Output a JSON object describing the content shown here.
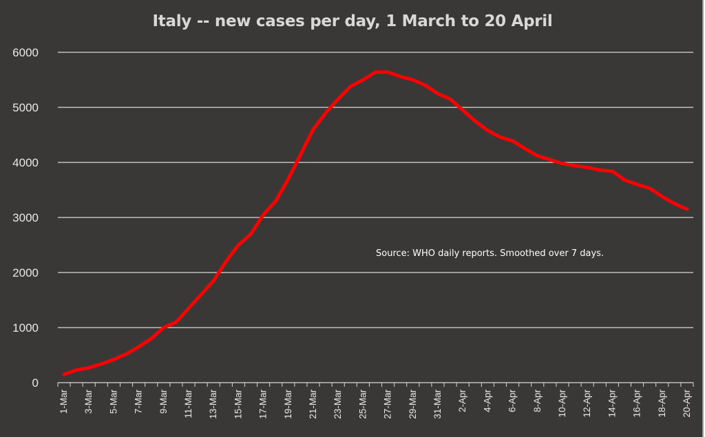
{
  "chart_data": {
    "type": "line",
    "title": "Italy -- new cases per day, 1 March to 20 April",
    "annotation": "Source:  WHO daily reports.  Smoothed over 7 days.",
    "xlabel": "",
    "ylabel": "",
    "ylim": [
      0,
      6000
    ],
    "yticks": [
      "0",
      "1000",
      "2000",
      "3000",
      "4000",
      "5000",
      "6000"
    ],
    "grid": true,
    "line_color": "#ff0000",
    "background_color": "#3a3836",
    "x": [
      "1-Mar",
      "2-Mar",
      "3-Mar",
      "4-Mar",
      "5-Mar",
      "6-Mar",
      "7-Mar",
      "8-Mar",
      "9-Mar",
      "10-Mar",
      "11-Mar",
      "12-Mar",
      "13-Mar",
      "14-Mar",
      "15-Mar",
      "16-Mar",
      "17-Mar",
      "18-Mar",
      "19-Mar",
      "20-Mar",
      "21-Mar",
      "22-Mar",
      "23-Mar",
      "24-Mar",
      "25-Mar",
      "26-Mar",
      "27-Mar",
      "28-Mar",
      "29-Mar",
      "30-Mar",
      "31-Mar",
      "1-Apr",
      "2-Apr",
      "3-Apr",
      "4-Apr",
      "5-Apr",
      "6-Apr",
      "7-Apr",
      "8-Apr",
      "9-Apr",
      "10-Apr",
      "11-Apr",
      "12-Apr",
      "13-Apr",
      "14-Apr",
      "15-Apr",
      "16-Apr",
      "17-Apr",
      "18-Apr",
      "19-Apr",
      "20-Apr"
    ],
    "xticks": [
      "1-Mar",
      "3-Mar",
      "5-Mar",
      "7-Mar",
      "9-Mar",
      "11-Mar",
      "13-Mar",
      "15-Mar",
      "17-Mar",
      "19-Mar",
      "21-Mar",
      "23-Mar",
      "25-Mar",
      "27-Mar",
      "29-Mar",
      "31-Mar",
      "2-Apr",
      "4-Apr",
      "6-Apr",
      "8-Apr",
      "10-Apr",
      "12-Apr",
      "14-Apr",
      "16-Apr",
      "18-Apr",
      "20-Apr"
    ],
    "series": [
      {
        "values": [
          150,
          230,
          270,
          340,
          420,
          520,
          650,
          800,
          1000,
          1100,
          1350,
          1600,
          1850,
          2200,
          2500,
          2700,
          3050,
          3300,
          3700,
          4150,
          4600,
          4900,
          5150,
          5380,
          5500,
          5640,
          5640,
          5560,
          5500,
          5400,
          5250,
          5150,
          4950,
          4750,
          4580,
          4460,
          4390,
          4250,
          4120,
          4050,
          3980,
          3940,
          3910,
          3860,
          3840,
          3680,
          3600,
          3530,
          3380,
          3250,
          3150
        ]
      }
    ]
  }
}
